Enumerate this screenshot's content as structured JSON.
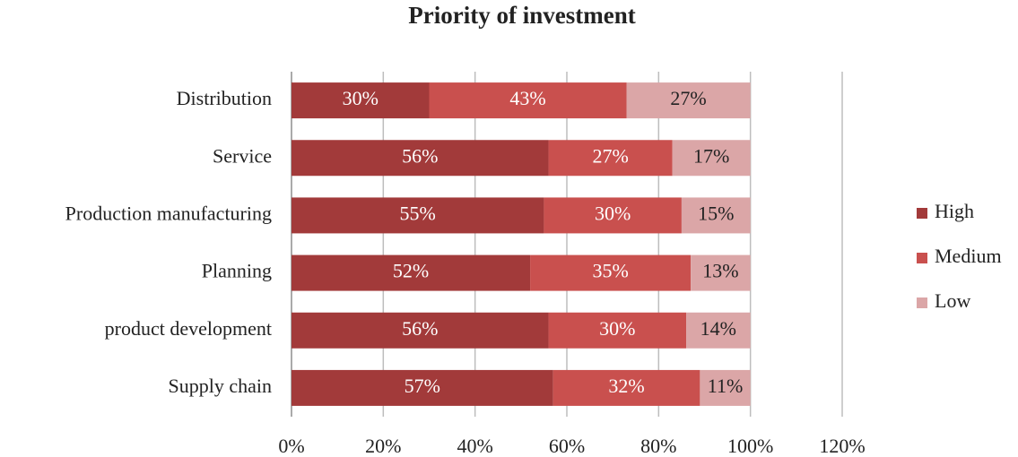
{
  "chart_data": {
    "type": "bar",
    "orientation": "horizontal",
    "stacked": true,
    "title": "Priority of investment",
    "categories": [
      "Distribution",
      "Service",
      "Production manufacturing",
      "Planning",
      "product development",
      "Supply chain"
    ],
    "series": [
      {
        "name": "High",
        "color": "#a23a3a",
        "values": [
          30,
          56,
          55,
          52,
          56,
          57
        ],
        "value_labels": [
          "30%",
          "56%",
          "55%",
          "52%",
          "56%",
          "57%"
        ]
      },
      {
        "name": "Medium",
        "color": "#c9504e",
        "values": [
          43,
          27,
          30,
          35,
          30,
          32
        ],
        "value_labels": [
          "43%",
          "27%",
          "30%",
          "35%",
          "30%",
          "32%"
        ]
      },
      {
        "name": "Low",
        "color": "#dba6a7",
        "values": [
          27,
          17,
          15,
          13,
          14,
          11
        ],
        "value_labels": [
          "27%",
          "17%",
          "15%",
          "13%",
          "14%",
          "11%"
        ]
      }
    ],
    "xlim": [
      0,
      120
    ],
    "xticks": [
      {
        "value": 0,
        "label": "0%"
      },
      {
        "value": 20,
        "label": "20%"
      },
      {
        "value": 40,
        "label": "40%"
      },
      {
        "value": 60,
        "label": "60%"
      },
      {
        "value": 80,
        "label": "80%"
      },
      {
        "value": 100,
        "label": "100%"
      },
      {
        "value": 120,
        "label": "120%"
      }
    ],
    "grid": true,
    "legend": "right"
  }
}
